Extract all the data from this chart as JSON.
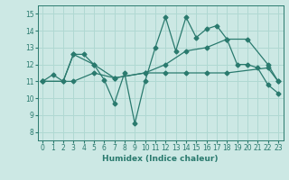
{
  "xlabel": "Humidex (Indice chaleur)",
  "xlim": [
    -0.5,
    23.5
  ],
  "ylim": [
    7.5,
    15.5
  ],
  "xticks": [
    0,
    1,
    2,
    3,
    4,
    5,
    6,
    7,
    8,
    9,
    10,
    11,
    12,
    13,
    14,
    15,
    16,
    17,
    18,
    19,
    20,
    21,
    22,
    23
  ],
  "yticks": [
    8,
    9,
    10,
    11,
    12,
    13,
    14,
    15
  ],
  "bg_color": "#cce8e4",
  "grid_color": "#b0d8d2",
  "line_color": "#2a7a6e",
  "line1_x": [
    0,
    1,
    2,
    3,
    4,
    5,
    6,
    7,
    8,
    9,
    10,
    11,
    12,
    13,
    14,
    15,
    16,
    17,
    18,
    19,
    20,
    21,
    22,
    23
  ],
  "line1_y": [
    11.0,
    11.4,
    11.0,
    12.6,
    12.6,
    12.0,
    11.1,
    9.7,
    11.5,
    8.5,
    11.0,
    13.0,
    14.8,
    12.8,
    14.8,
    13.6,
    14.1,
    14.3,
    13.5,
    12.0,
    12.0,
    11.8,
    10.8,
    10.3
  ],
  "line2_x": [
    0,
    3,
    5,
    7,
    10,
    12,
    14,
    16,
    18,
    20,
    22,
    23
  ],
  "line2_y": [
    11.0,
    11.0,
    11.5,
    11.2,
    11.5,
    12.0,
    12.8,
    13.0,
    13.5,
    13.5,
    12.0,
    11.0
  ],
  "line3_x": [
    0,
    2,
    3,
    5,
    7,
    10,
    12,
    14,
    16,
    18,
    22,
    23
  ],
  "line3_y": [
    11.0,
    11.0,
    12.6,
    12.0,
    11.2,
    11.5,
    11.5,
    11.5,
    11.5,
    11.5,
    11.8,
    11.0
  ]
}
